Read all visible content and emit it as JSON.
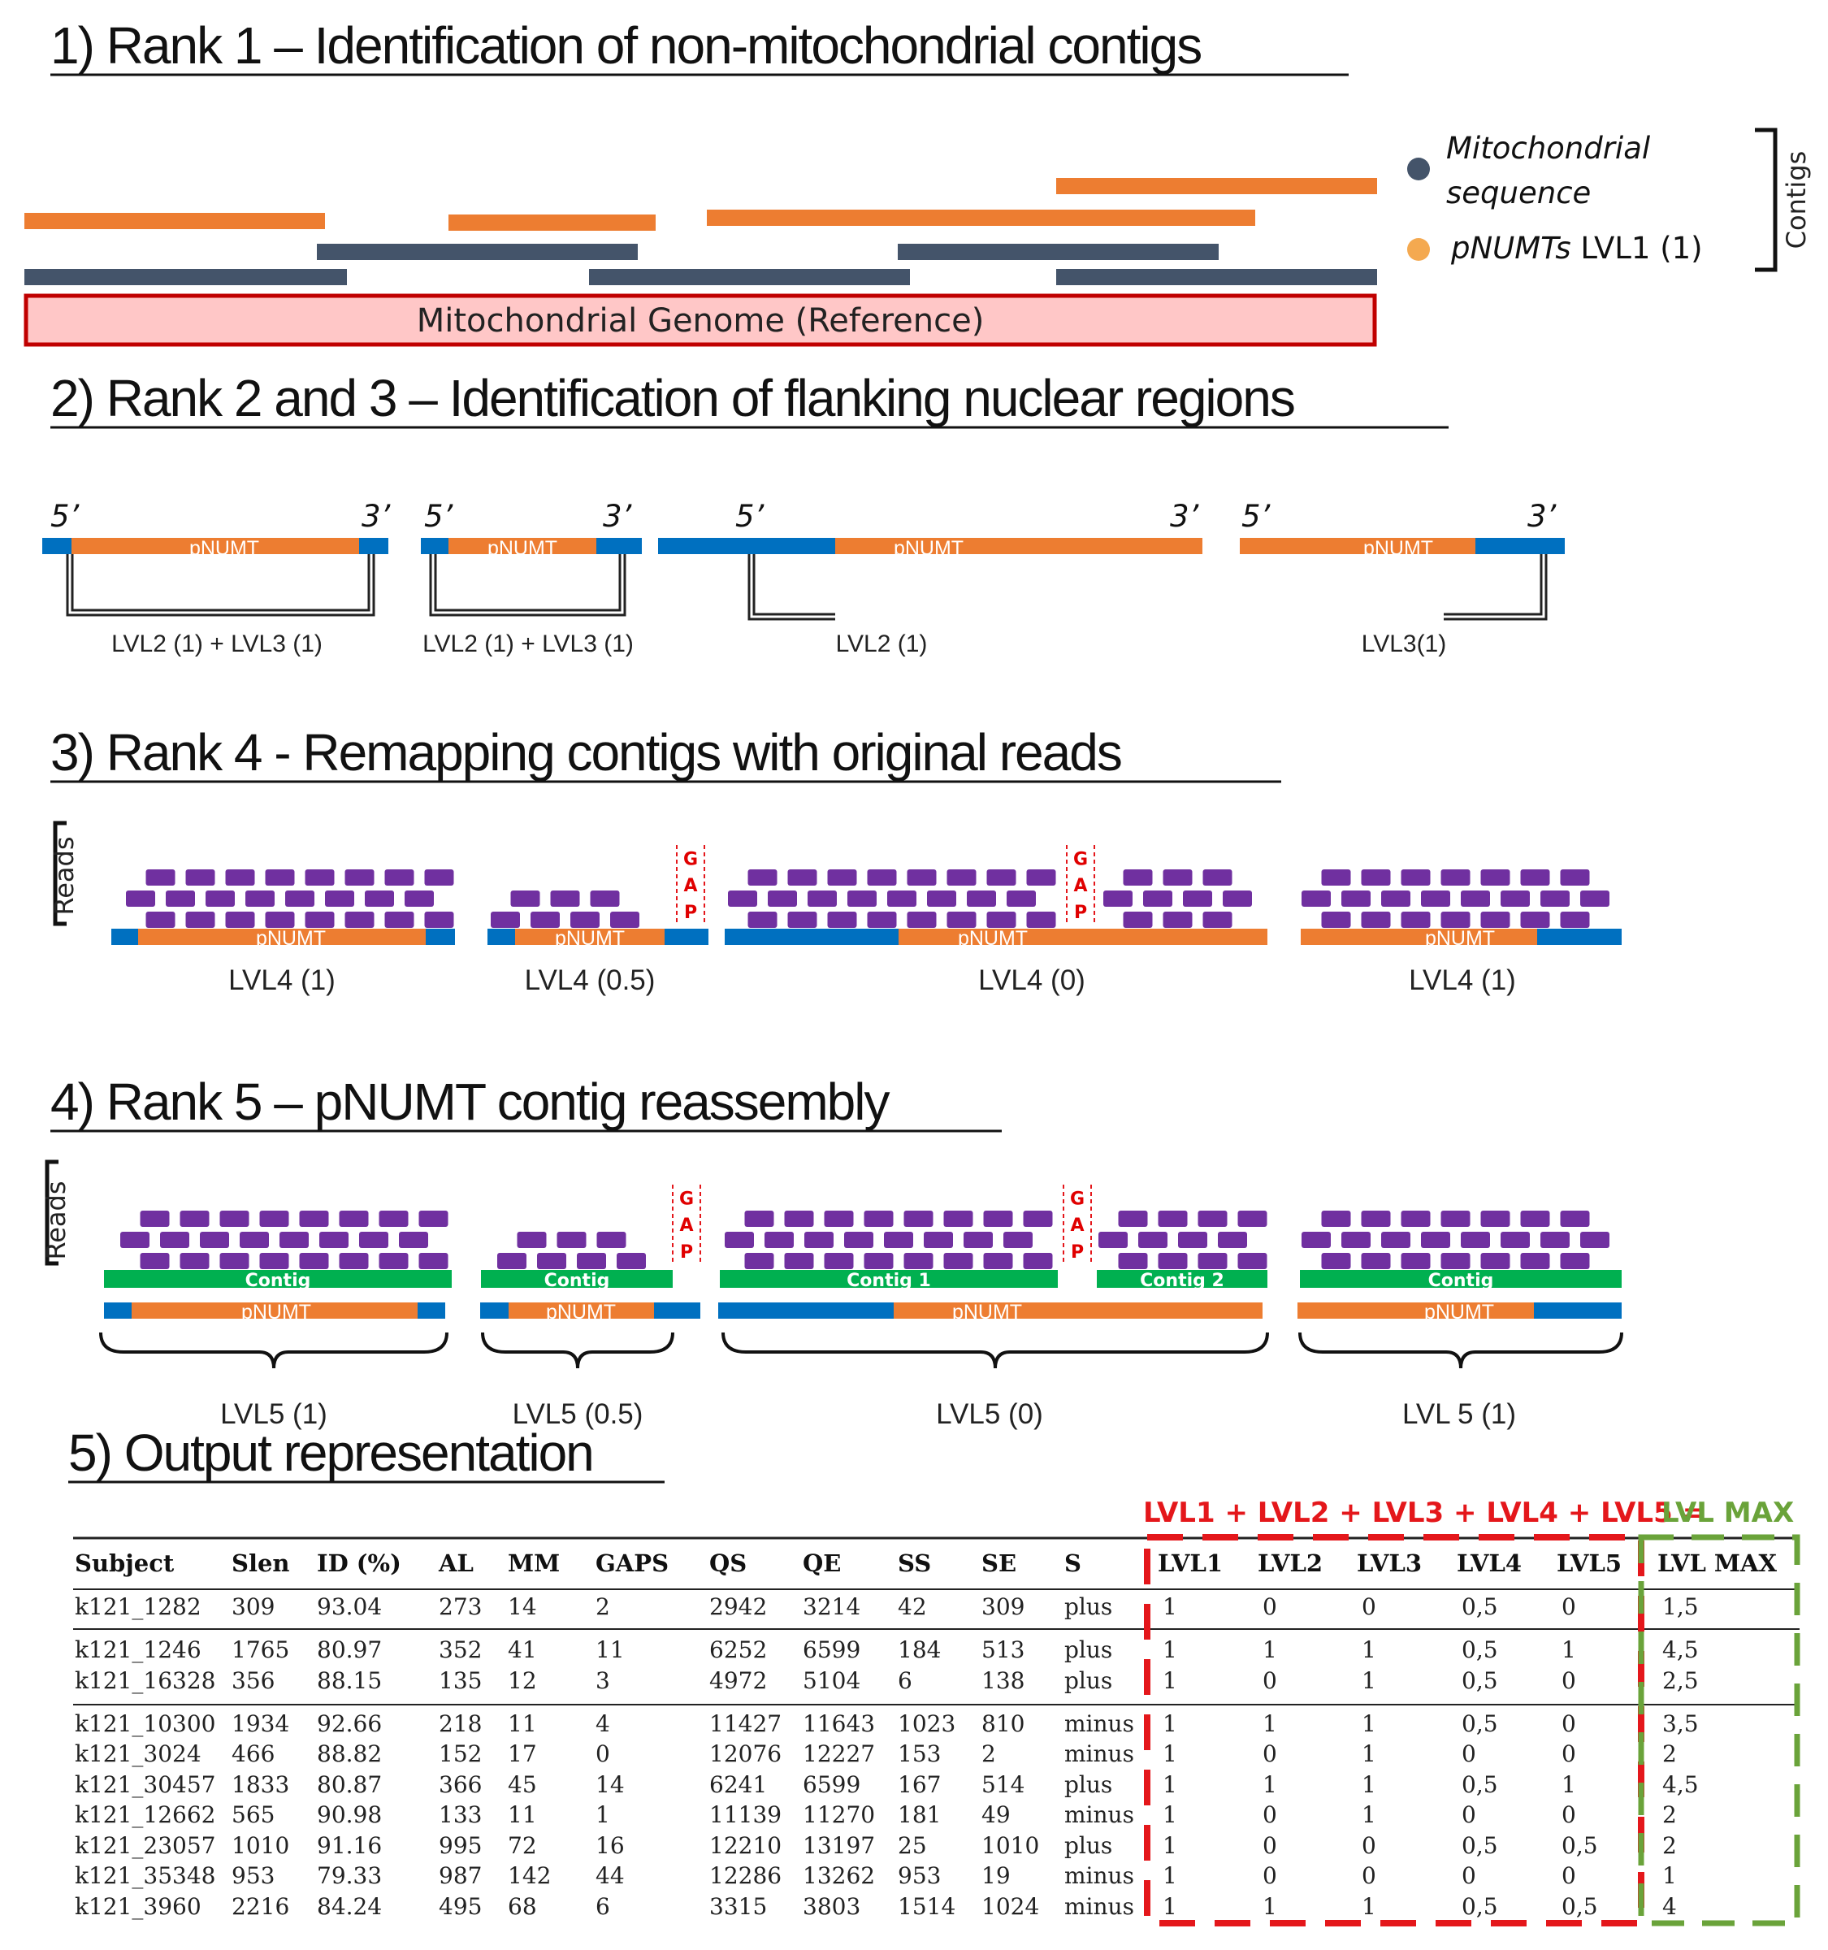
{
  "colors": {
    "orange": "#ED7D31",
    "navy": "#44546A",
    "blue": "#0070C0",
    "purple": "#7030A0",
    "green": "#00B050",
    "pink": "#FFC7C7",
    "darkred": "#C00000",
    "red": "#E4171B",
    "dashgreen": "#6AA33A"
  },
  "section1": {
    "title": "1) Rank 1 – Identification of non-mitochondrial contigs",
    "reference_label": "Mitochondrial Genome (Reference)",
    "legend": {
      "mito_line1": "Mitochondrial",
      "mito_line2": "sequence",
      "pnumt_italic": "pNUMTs",
      "pnumt_rest": " LVL1 (1)",
      "bracket_label": "Contigs"
    }
  },
  "section2": {
    "title": "2) Rank 2 and 3 – Identification of flanking nuclear regions",
    "five_prime": "5’",
    "three_prime": "3’",
    "bar_label": "pNUMT",
    "labels": [
      "LVL2 (1) + LVL3 (1)",
      "LVL2 (1) + LVL3 (1)",
      "LVL2 (1)",
      "LVL3(1)"
    ]
  },
  "section3": {
    "title": "3) Rank 4 - Remapping  contigs with original reads",
    "reads_label": "Reads",
    "gap_letters": [
      "G",
      "A",
      "P"
    ],
    "bar_label": "pNUMT",
    "labels": [
      "LVL4 (1)",
      "LVL4 (0.5)",
      "LVL4 (0)",
      "LVL4 (1)"
    ]
  },
  "section4": {
    "title": "4) Rank 5 – pNUMT contig reassembly",
    "reads_label": "Reads",
    "gap_letters": [
      "G",
      "A",
      "P"
    ],
    "bar_label": "pNUMT",
    "contig_label": "Contig",
    "contig1_label": "Contig  1",
    "contig2_label": "Contig  2",
    "labels": [
      "LVL5 (1)",
      "LVL5 (0.5)",
      "LVL5 (0)",
      "LVL 5 (1)"
    ]
  },
  "section5": {
    "title": "5) Output representation",
    "equation_red": "LVL1 + LVL2 + LVL3 + LVL4 + LVL5 =",
    "equation_green": "LVL MAX",
    "headers": [
      "Subject",
      "Slen",
      "ID (%)",
      "AL",
      "MM",
      "GAPS",
      "QS",
      "QE",
      "SS",
      "SE",
      "S",
      "LVL1",
      "LVL2",
      "LVL3",
      "LVL4",
      "LVL5",
      "LVL MAX"
    ],
    "rows": [
      [
        "k121_1282",
        "309",
        "93.04",
        "273",
        "14",
        "2",
        "2942",
        "3214",
        "42",
        "309",
        "plus",
        "1",
        "0",
        "0",
        "0,5",
        "0",
        "1,5"
      ],
      [
        "k121_1246",
        "1765",
        "80.97",
        "352",
        "41",
        "11",
        "6252",
        "6599",
        "184",
        "513",
        "plus",
        "1",
        "1",
        "1",
        "0,5",
        "1",
        "4,5"
      ],
      [
        "k121_16328",
        "356",
        "88.15",
        "135",
        "12",
        "3",
        "4972",
        "5104",
        "6",
        "138",
        "plus",
        "1",
        "0",
        "1",
        "0,5",
        "0",
        "2,5"
      ],
      [
        "k121_10300",
        "1934",
        "92.66",
        "218",
        "11",
        "4",
        "11427",
        "11643",
        "1023",
        "810",
        "minus",
        "1",
        "1",
        "1",
        "0,5",
        "0",
        "3,5"
      ],
      [
        "k121_3024",
        "466",
        "88.82",
        "152",
        "17",
        "0",
        "12076",
        "12227",
        "153",
        "2",
        "minus",
        "1",
        "0",
        "1",
        "0",
        "0",
        "2"
      ],
      [
        "k121_30457",
        "1833",
        "80.87",
        "366",
        "45",
        "14",
        "6241",
        "6599",
        "167",
        "514",
        "plus",
        "1",
        "1",
        "1",
        "0,5",
        "1",
        "4,5"
      ],
      [
        "k121_12662",
        "565",
        "90.98",
        "133",
        "11",
        "1",
        "11139",
        "11270",
        "181",
        "49",
        "minus",
        "1",
        "0",
        "1",
        "0",
        "0",
        "2"
      ],
      [
        "k121_23057",
        "1010",
        "91.16",
        "995",
        "72",
        "16",
        "12210",
        "13197",
        "25",
        "1010",
        "plus",
        "1",
        "0",
        "0",
        "0,5",
        "0,5",
        "2"
      ],
      [
        "k121_35348",
        "953",
        "79.33",
        "987",
        "142",
        "44",
        "12286",
        "13262",
        "953",
        "19",
        "minus",
        "1",
        "0",
        "0",
        "0",
        "0",
        "1"
      ],
      [
        "k121_3960",
        "2216",
        "84.24",
        "495",
        "68",
        "6",
        "3315",
        "3803",
        "1514",
        "1024",
        "minus",
        "1",
        "1",
        "1",
        "0,5",
        "0,5",
        "4"
      ]
    ]
  }
}
